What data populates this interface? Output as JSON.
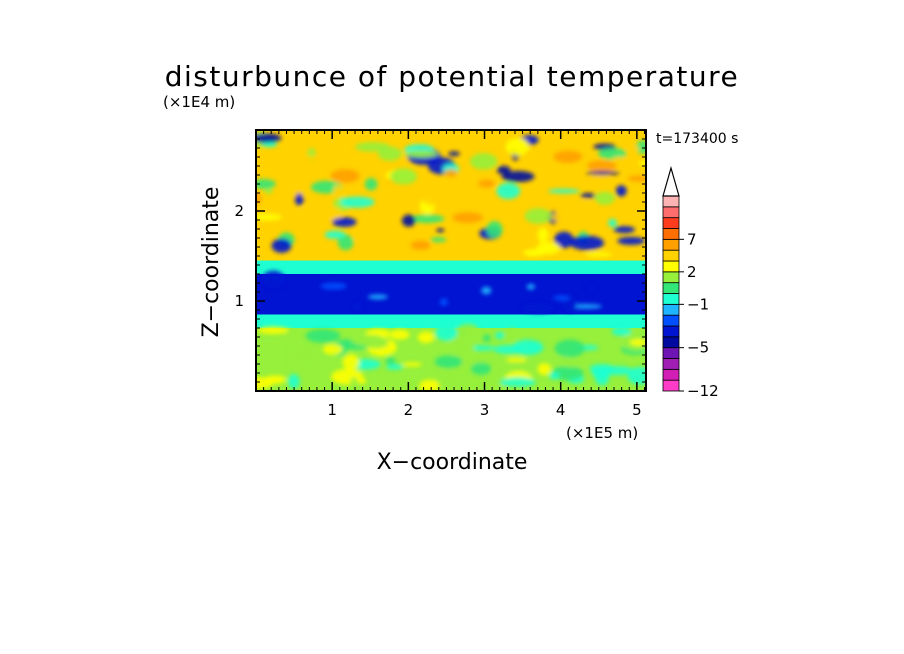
{
  "chart_data": {
    "type": "heatmap",
    "title": "disturbunce of potential temperature",
    "time_label": "t=173400 s",
    "xlabel": "X−coordinate",
    "ylabel": "Z−coordinate",
    "x_unit": "(×1E5 m)",
    "y_unit": "(×1E4 m)",
    "xlim": [
      0,
      5.12
    ],
    "ylim": [
      0,
      2.9
    ],
    "x_ticks": [
      "1",
      "2",
      "3",
      "4",
      "5"
    ],
    "y_ticks": [
      "1",
      "2"
    ],
    "colorbar": {
      "labels": [
        {
          "value": 7,
          "text": "7"
        },
        {
          "value": 2,
          "text": "2"
        },
        {
          "value": -1,
          "text": "−1"
        },
        {
          "value": -5,
          "text": "−5"
        },
        {
          "value": -12,
          "text": "−12"
        }
      ],
      "levels": [
        -12,
        -10,
        -8,
        -6,
        -5,
        -4,
        -3,
        -2,
        -1,
        0,
        1,
        2,
        3,
        5,
        7,
        9,
        11,
        13
      ],
      "colors": [
        "#ff3cc8",
        "#d21eb4",
        "#a01eb4",
        "#6e14b4",
        "#000aa0",
        "#0014d2",
        "#0050ff",
        "#1eb4ff",
        "#1effd2",
        "#32e678",
        "#96f03c",
        "#ffff00",
        "#ffd200",
        "#ffa000",
        "#ff6e00",
        "#ff3c1e",
        "#ff6e6e",
        "#ffb4b4"
      ],
      "extend": "max"
    },
    "field_summary": {
      "z_bands": [
        {
          "z": [
            0.0,
            0.7
          ],
          "value": 1.5
        },
        {
          "z": [
            0.7,
            0.85
          ],
          "value": -0.8
        },
        {
          "z": [
            0.85,
            1.3
          ],
          "value": -4.0
        },
        {
          "z": [
            1.3,
            1.45
          ],
          "value": -0.5
        },
        {
          "z": [
            1.45,
            2.9
          ],
          "value": 3.0
        }
      ]
    }
  }
}
